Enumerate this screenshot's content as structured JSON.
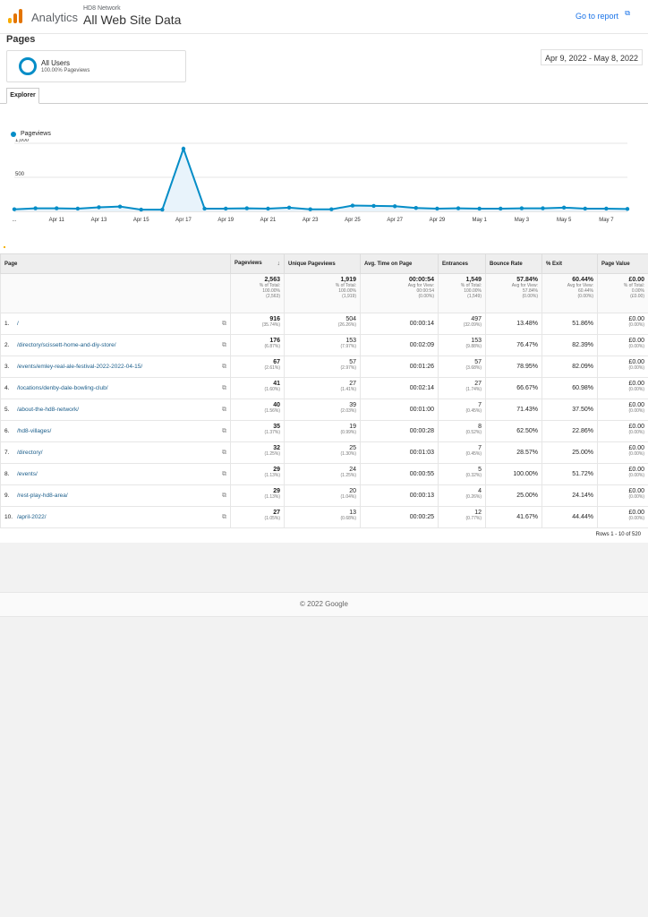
{
  "header": {
    "app_name": "Analytics",
    "account": "HD8 Network",
    "view_name": "All Web Site Data",
    "goto_report": "Go to report",
    "goto_icon": "external-link-icon"
  },
  "page": {
    "title": "Pages",
    "date_range": "Apr 9, 2022 - May 8, 2022"
  },
  "segment": {
    "name": "All Users",
    "sub": "100.00% Pageviews"
  },
  "tabs": {
    "explorer": "Explorer"
  },
  "chart_data": {
    "type": "line",
    "series": [
      {
        "name": "Pageviews",
        "color": "#058dc7",
        "values": [
          30,
          45,
          45,
          40,
          60,
          70,
          25,
          25,
          920,
          40,
          40,
          45,
          40,
          55,
          30,
          30,
          85,
          80,
          75,
          50,
          40,
          45,
          40,
          40,
          45,
          45,
          55,
          40,
          40,
          35
        ]
      }
    ],
    "x_labels": [
      "...",
      "Apr 11",
      "Apr 13",
      "Apr 15",
      "Apr 17",
      "Apr 19",
      "Apr 21",
      "Apr 23",
      "Apr 25",
      "Apr 27",
      "Apr 29",
      "May 1",
      "May 3",
      "May 5",
      "May 7"
    ],
    "y_ticks": [
      "1,000",
      "500"
    ],
    "ylim": [
      0,
      1000
    ],
    "grid": true
  },
  "table": {
    "headers": [
      "Page",
      "Pageviews",
      "Unique Pageviews",
      "Avg. Time on Page",
      "Entrances",
      "Bounce Rate",
      "% Exit",
      "Page Value"
    ],
    "totals": [
      {
        "main": "2,563",
        "l1": "% of Total:",
        "l2": "100.00%",
        "l3": "(2,563)"
      },
      {
        "main": "1,919",
        "l1": "% of Total:",
        "l2": "100.00%",
        "l3": "(1,919)"
      },
      {
        "main": "00:00:54",
        "l1": "Avg for View:",
        "l2": "00:00:54",
        "l3": "(0.00%)"
      },
      {
        "main": "1,549",
        "l1": "% of Total:",
        "l2": "100.00%",
        "l3": "(1,549)"
      },
      {
        "main": "57.84%",
        "l1": "Avg for View:",
        "l2": "57.84%",
        "l3": "(0.00%)"
      },
      {
        "main": "60.44%",
        "l1": "Avg for View:",
        "l2": "60.44%",
        "l3": "(0.00%)"
      },
      {
        "main": "£0.00",
        "l1": "% of Total:",
        "l2": "0.00%",
        "l3": "(£0.00)"
      }
    ],
    "rows": [
      {
        "rank": "1.",
        "page": "/",
        "pv": "916",
        "pv_pct": "(35.74%)",
        "upv": "504",
        "upv_pct": "(26.26%)",
        "time": "00:00:14",
        "ent": "497",
        "ent_pct": "(32.09%)",
        "bounce": "13.48%",
        "exit": "51.86%",
        "value": "£0.00",
        "value_pct": "(0.00%)"
      },
      {
        "rank": "2.",
        "page": "/directory/scissett-home-and-diy-store/",
        "pv": "176",
        "pv_pct": "(6.87%)",
        "upv": "153",
        "upv_pct": "(7.97%)",
        "time": "00:02:09",
        "ent": "153",
        "ent_pct": "(9.88%)",
        "bounce": "76.47%",
        "exit": "82.39%",
        "value": "£0.00",
        "value_pct": "(0.00%)"
      },
      {
        "rank": "3.",
        "page": "/events/emley-real-ale-festival-2022-2022-04-15/",
        "pv": "67",
        "pv_pct": "(2.61%)",
        "upv": "57",
        "upv_pct": "(2.97%)",
        "time": "00:01:26",
        "ent": "57",
        "ent_pct": "(3.68%)",
        "bounce": "78.95%",
        "exit": "82.09%",
        "value": "£0.00",
        "value_pct": "(0.00%)"
      },
      {
        "rank": "4.",
        "page": "/locations/denby-dale-bowling-club/",
        "pv": "41",
        "pv_pct": "(1.60%)",
        "upv": "27",
        "upv_pct": "(1.41%)",
        "time": "00:02:14",
        "ent": "27",
        "ent_pct": "(1.74%)",
        "bounce": "66.67%",
        "exit": "60.98%",
        "value": "£0.00",
        "value_pct": "(0.00%)"
      },
      {
        "rank": "5.",
        "page": "/about-the-hd8-network/",
        "pv": "40",
        "pv_pct": "(1.56%)",
        "upv": "39",
        "upv_pct": "(2.03%)",
        "time": "00:01:00",
        "ent": "7",
        "ent_pct": "(0.45%)",
        "bounce": "71.43%",
        "exit": "37.50%",
        "value": "£0.00",
        "value_pct": "(0.00%)"
      },
      {
        "rank": "6.",
        "page": "/hd8-villages/",
        "pv": "35",
        "pv_pct": "(1.37%)",
        "upv": "19",
        "upv_pct": "(0.99%)",
        "time": "00:00:28",
        "ent": "8",
        "ent_pct": "(0.52%)",
        "bounce": "62.50%",
        "exit": "22.86%",
        "value": "£0.00",
        "value_pct": "(0.00%)"
      },
      {
        "rank": "7.",
        "page": "/directory/",
        "pv": "32",
        "pv_pct": "(1.25%)",
        "upv": "25",
        "upv_pct": "(1.30%)",
        "time": "00:01:03",
        "ent": "7",
        "ent_pct": "(0.45%)",
        "bounce": "28.57%",
        "exit": "25.00%",
        "value": "£0.00",
        "value_pct": "(0.00%)"
      },
      {
        "rank": "8.",
        "page": "/events/",
        "pv": "29",
        "pv_pct": "(1.13%)",
        "upv": "24",
        "upv_pct": "(1.25%)",
        "time": "00:00:55",
        "ent": "5",
        "ent_pct": "(0.32%)",
        "bounce": "100.00%",
        "exit": "51.72%",
        "value": "£0.00",
        "value_pct": "(0.00%)"
      },
      {
        "rank": "9.",
        "page": "/rest-play-hd8-area/",
        "pv": "29",
        "pv_pct": "(1.13%)",
        "upv": "20",
        "upv_pct": "(1.04%)",
        "time": "00:00:13",
        "ent": "4",
        "ent_pct": "(0.26%)",
        "bounce": "25.00%",
        "exit": "24.14%",
        "value": "£0.00",
        "value_pct": "(0.00%)"
      },
      {
        "rank": "10.",
        "page": "/april-2022/",
        "pv": "27",
        "pv_pct": "(1.05%)",
        "upv": "13",
        "upv_pct": "(0.68%)",
        "time": "00:00:25",
        "ent": "12",
        "ent_pct": "(0.77%)",
        "bounce": "41.67%",
        "exit": "44.44%",
        "value": "£0.00",
        "value_pct": "(0.00%)"
      }
    ],
    "rows_info": "Rows 1 - 10 of 520"
  },
  "footer": {
    "copyright": "© 2022 Google"
  },
  "colors": {
    "accent": "#058dc7",
    "link": "#1a73e8",
    "logo": [
      "#f9ab00",
      "#e37400",
      "#e37400"
    ]
  }
}
